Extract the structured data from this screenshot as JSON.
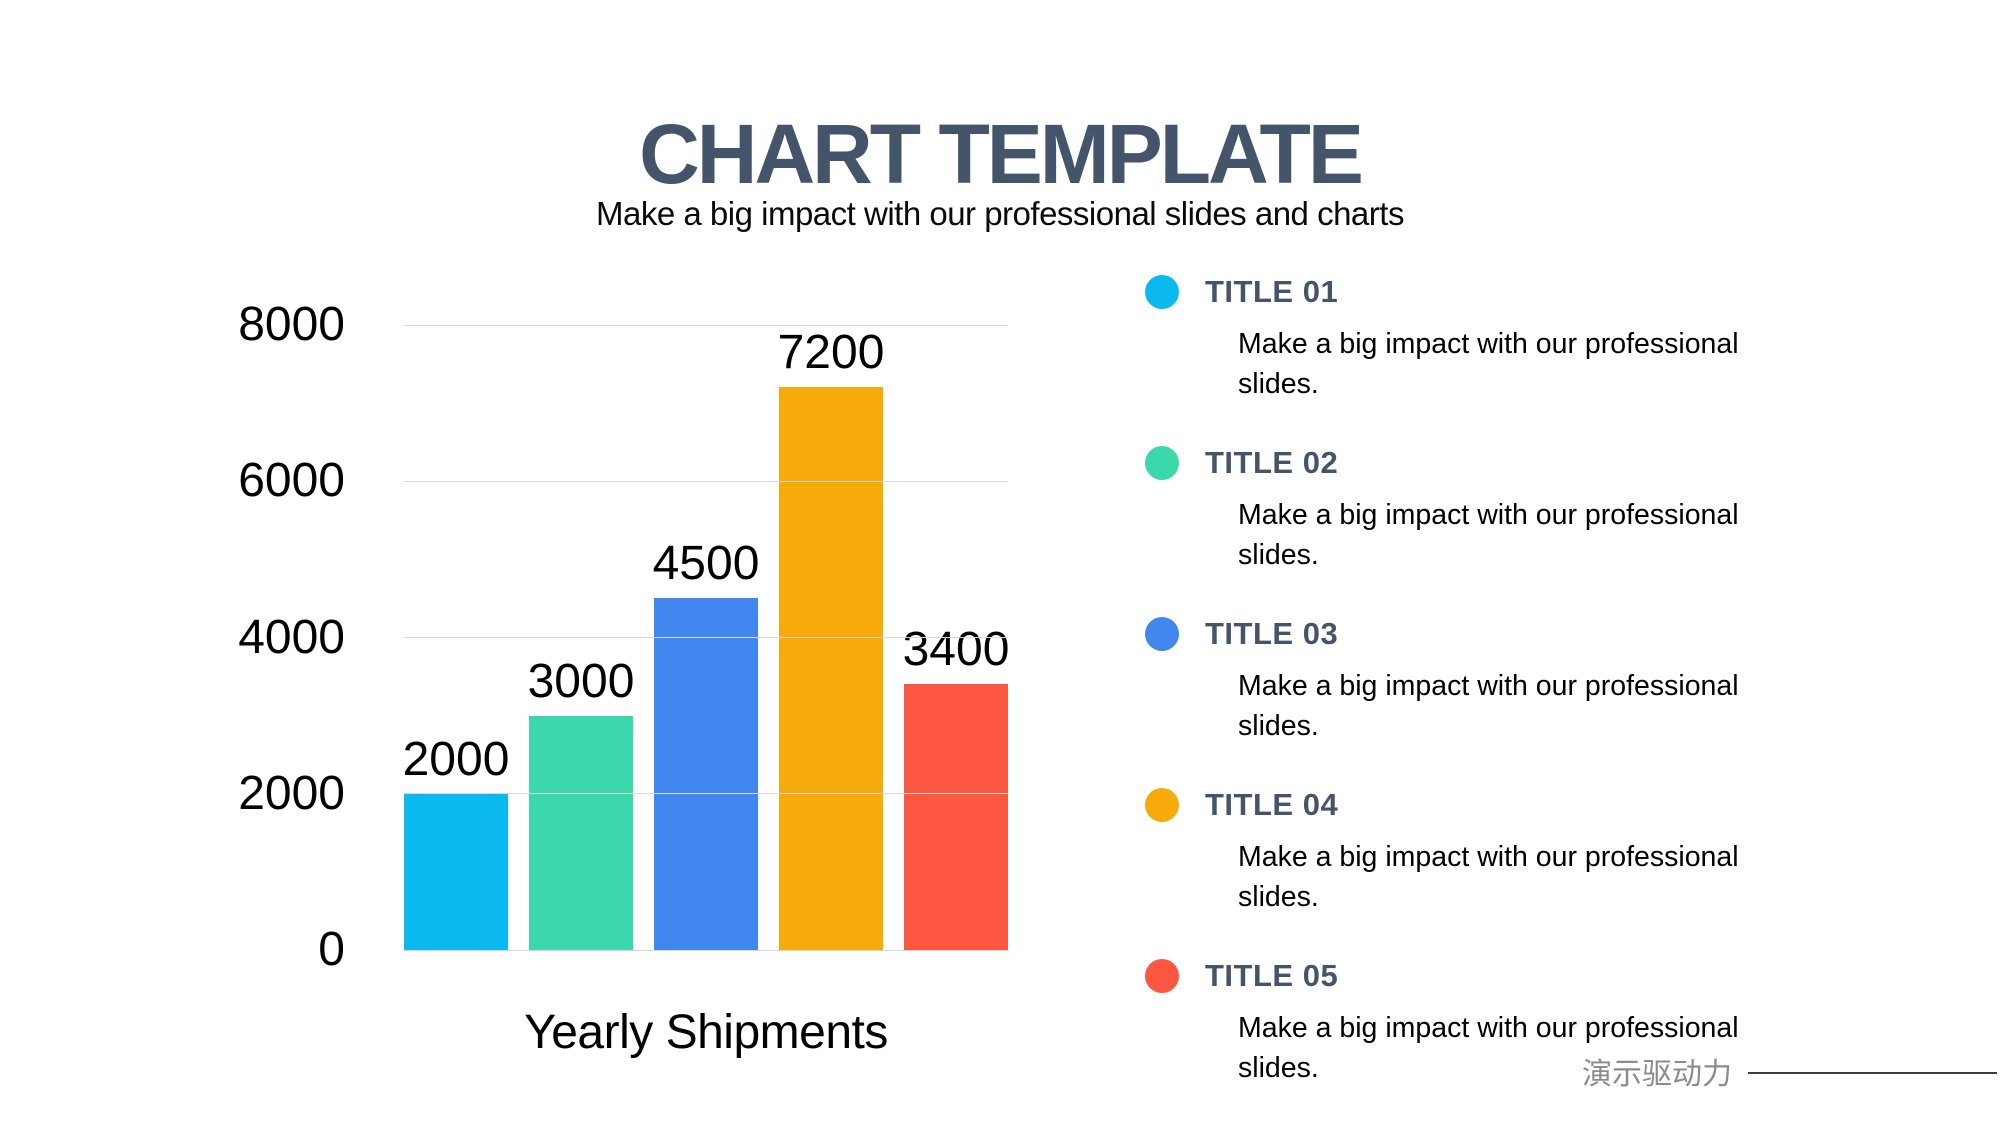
{
  "slide": {
    "title": "CHART TEMPLATE",
    "subtitle": "Make a big impact with our professional slides and charts",
    "title_color": "#44546a",
    "background": "#ffffff"
  },
  "chart_data": {
    "type": "bar",
    "title": "Yearly Shipments",
    "title_position": "bottom",
    "values": [
      2000,
      3000,
      4500,
      7200,
      3400
    ],
    "data_labels": [
      "2000",
      "3000",
      "4500",
      "7200",
      "3400"
    ],
    "bar_colors": [
      "#0bb9f0",
      "#3ad8ab",
      "#4187ef",
      "#f6ab0b",
      "#fd5742"
    ],
    "ylim": [
      0,
      8000
    ],
    "yticks": [
      0,
      2000,
      4000,
      6000,
      8000
    ],
    "ytick_labels": [
      "0",
      "2000",
      "4000",
      "6000",
      "8000"
    ],
    "grid": true,
    "gridline_color": "#d9d9d9",
    "legend_position": "right-panel"
  },
  "legend": {
    "title_color": "#44546a",
    "items": [
      {
        "title": "TITLE 01",
        "color": "#0bb9f0",
        "description": "Make a big impact with our professional slides."
      },
      {
        "title": "TITLE 02",
        "color": "#3ad8ab",
        "description": "Make a big impact with our professional slides."
      },
      {
        "title": "TITLE 03",
        "color": "#4187ef",
        "description": "Make a big impact with our professional slides."
      },
      {
        "title": "TITLE 04",
        "color": "#f6ab0b",
        "description": "Make a big impact with our professional slides."
      },
      {
        "title": "TITLE 05",
        "color": "#fd5742",
        "description": "Make a big impact with our professional slides."
      }
    ]
  },
  "footer": {
    "watermark": "演示驱动力",
    "watermark_color": "#8c8c8c"
  }
}
